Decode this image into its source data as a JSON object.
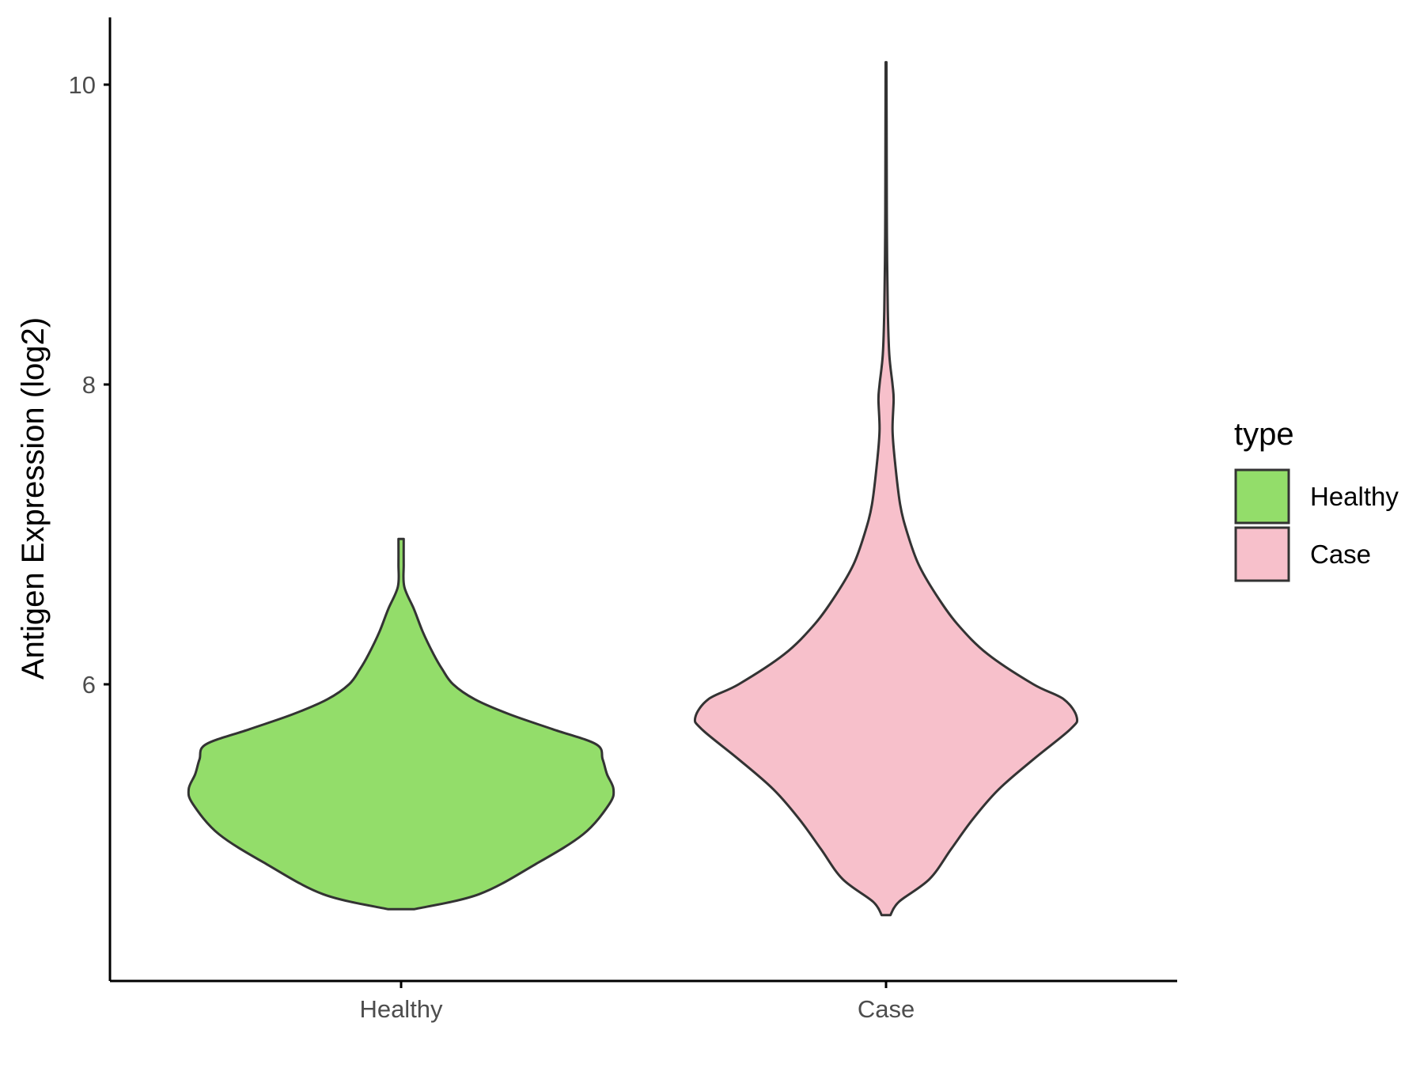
{
  "chart_data": {
    "type": "violin",
    "title": "",
    "xlabel": "",
    "ylabel": "Antigen Expression (log2)",
    "categories": [
      "Healthy",
      "Case"
    ],
    "ylim": [
      4.0,
      10.45
    ],
    "y_ticks": [
      6,
      8,
      10
    ],
    "grid": false,
    "legend": {
      "title": "type",
      "position": "right"
    },
    "series": [
      {
        "name": "Healthy",
        "color": "#93DD6A",
        "y_min": 4.5,
        "y_max": 6.97,
        "density_profile": [
          [
            4.5,
            0.06
          ],
          [
            4.6,
            0.36
          ],
          [
            4.8,
            0.62
          ],
          [
            5.0,
            0.84
          ],
          [
            5.2,
            0.96
          ],
          [
            5.3,
            0.98
          ],
          [
            5.4,
            0.95
          ],
          [
            5.5,
            0.93
          ],
          [
            5.6,
            0.9
          ],
          [
            5.7,
            0.7
          ],
          [
            5.8,
            0.5
          ],
          [
            5.9,
            0.34
          ],
          [
            6.0,
            0.24
          ],
          [
            6.1,
            0.19
          ],
          [
            6.2,
            0.15
          ],
          [
            6.35,
            0.1
          ],
          [
            6.5,
            0.06
          ],
          [
            6.65,
            0.015
          ],
          [
            6.8,
            0.012
          ],
          [
            6.97,
            0.012
          ]
        ]
      },
      {
        "name": "Case",
        "color": "#F7C0CB",
        "y_min": 4.46,
        "y_max": 10.15,
        "density_profile": [
          [
            4.46,
            0.02
          ],
          [
            4.55,
            0.06
          ],
          [
            4.7,
            0.2
          ],
          [
            4.9,
            0.3
          ],
          [
            5.1,
            0.4
          ],
          [
            5.3,
            0.52
          ],
          [
            5.5,
            0.68
          ],
          [
            5.7,
            0.85
          ],
          [
            5.78,
            0.88
          ],
          [
            5.9,
            0.82
          ],
          [
            6.0,
            0.68
          ],
          [
            6.2,
            0.47
          ],
          [
            6.4,
            0.33
          ],
          [
            6.6,
            0.23
          ],
          [
            6.8,
            0.15
          ],
          [
            7.0,
            0.1
          ],
          [
            7.2,
            0.065
          ],
          [
            7.5,
            0.04
          ],
          [
            7.7,
            0.03
          ],
          [
            7.9,
            0.035
          ],
          [
            8.0,
            0.03
          ],
          [
            8.2,
            0.015
          ],
          [
            8.5,
            0.008
          ],
          [
            9.0,
            0.004
          ],
          [
            9.5,
            0.003
          ],
          [
            10.15,
            0.002
          ]
        ]
      }
    ]
  }
}
